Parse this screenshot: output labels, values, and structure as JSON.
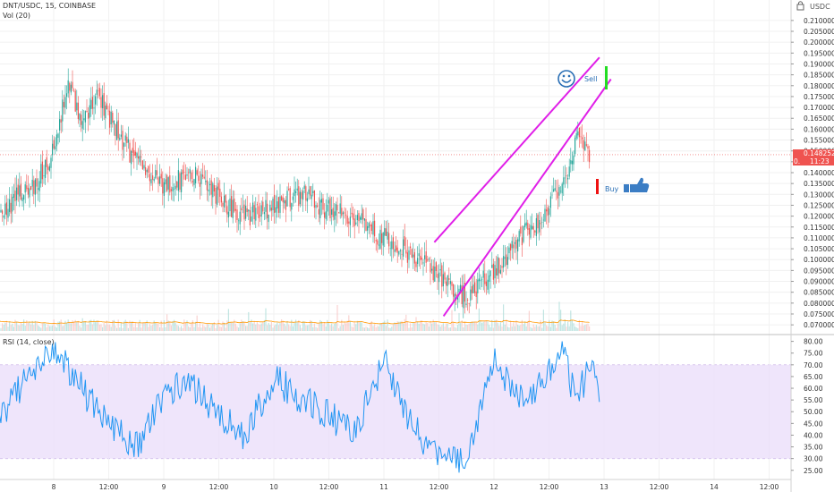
{
  "header": {
    "symbol_line": "DNT/USDC, 15, COINBASE",
    "volume_label": "Vol (20)",
    "rsi_label": "RSI (14, close)",
    "currency_label": "USDC",
    "currency_icon": "lock-icon"
  },
  "annotations": {
    "sell_label": "Sell",
    "buy_label": "Buy",
    "sell_icon": "smiley-face-icon",
    "buy_icon": "thumbs-up-icon",
    "sell_marker_color": "#22dd22",
    "buy_marker_color": "#ee1111"
  },
  "price_tags": {
    "last_price": "0.148252",
    "countdown": "11:23",
    "prefix": "0."
  },
  "colors": {
    "up_candle": "#26a69a",
    "down_candle": "#ef5350",
    "channel_line": "#e020e8",
    "rsi_line": "#2196f3",
    "rsi_band": "#eadcfa",
    "volume_ma": "#ff9800",
    "price_tag": "#ef5350"
  },
  "chart_data": [
    {
      "type": "candlestick",
      "name": "price",
      "y_axis_ticks": [
        "0.210000",
        "0.205000",
        "0.200000",
        "0.195000",
        "0.190000",
        "0.185000",
        "0.180000",
        "0.175000",
        "0.170000",
        "0.165000",
        "0.160000",
        "0.155000",
        "0.150000",
        "0.145000",
        "0.140000",
        "0.135000",
        "0.130000",
        "0.125000",
        "0.120000",
        "0.115000",
        "0.110000",
        "0.105000",
        "0.100000",
        "0.095000",
        "0.090000",
        "0.085000",
        "0.080000",
        "0.075000",
        "0.070000"
      ],
      "ylim": [
        0.068,
        0.212
      ],
      "x_axis_ticks": [
        "8",
        "12:00",
        "9",
        "12:00",
        "10",
        "12:00",
        "11",
        "12:00",
        "12",
        "12:00",
        "13",
        "12:00",
        "14",
        "12:00"
      ],
      "approx_close_path": [
        {
          "t": "7 00:00",
          "y": 0.115
        },
        {
          "t": "7 08:00",
          "y": 0.112
        },
        {
          "t": "7 14:00",
          "y": 0.125
        },
        {
          "t": "7 20:00",
          "y": 0.135
        },
        {
          "t": "8 00:00",
          "y": 0.15
        },
        {
          "t": "8 03:00",
          "y": 0.182
        },
        {
          "t": "8 06:00",
          "y": 0.165
        },
        {
          "t": "8 10:00",
          "y": 0.175
        },
        {
          "t": "8 14:00",
          "y": 0.158
        },
        {
          "t": "8 18:00",
          "y": 0.145
        },
        {
          "t": "9 00:00",
          "y": 0.133
        },
        {
          "t": "9 06:00",
          "y": 0.14
        },
        {
          "t": "9 12:00",
          "y": 0.128
        },
        {
          "t": "9 18:00",
          "y": 0.12
        },
        {
          "t": "10 00:00",
          "y": 0.125
        },
        {
          "t": "10 06:00",
          "y": 0.13
        },
        {
          "t": "10 12:00",
          "y": 0.123
        },
        {
          "t": "10 18:00",
          "y": 0.118
        },
        {
          "t": "11 00:00",
          "y": 0.11
        },
        {
          "t": "11 06:00",
          "y": 0.102
        },
        {
          "t": "11 12:00",
          "y": 0.093
        },
        {
          "t": "11 18:00",
          "y": 0.082
        },
        {
          "t": "12 00:00",
          "y": 0.095
        },
        {
          "t": "12 06:00",
          "y": 0.11
        },
        {
          "t": "12 12:00",
          "y": 0.125
        },
        {
          "t": "12 15:00",
          "y": 0.135
        },
        {
          "t": "12 18:00",
          "y": 0.155
        },
        {
          "t": "12 21:00",
          "y": 0.148
        }
      ],
      "channel_lines": [
        {
          "from": {
            "t": "11 11:00",
            "y": 0.108
          },
          "to": {
            "t": "12 23:00",
            "y": 0.193
          }
        },
        {
          "from": {
            "t": "11 13:00",
            "y": 0.074
          },
          "to": {
            "t": "13 01:30",
            "y": 0.183
          }
        }
      ],
      "last_price": 0.148252
    },
    {
      "type": "line",
      "name": "RSI (14, close)",
      "y_axis_ticks": [
        "80.00",
        "75.00",
        "70.00",
        "65.00",
        "60.00",
        "55.00",
        "50.00",
        "45.00",
        "40.00",
        "35.00",
        "30.00",
        "25.00"
      ],
      "ylim": [
        23,
        81
      ],
      "band": [
        30,
        70
      ],
      "x_axis_ticks": [
        "8",
        "12:00",
        "9",
        "12:00",
        "10",
        "12:00",
        "11",
        "12:00",
        "12",
        "12:00",
        "13",
        "12:00",
        "14",
        "12:00"
      ],
      "approx_path": [
        {
          "t": "7 00:00",
          "y": 60
        },
        {
          "t": "7 06:00",
          "y": 55
        },
        {
          "t": "7 12:00",
          "y": 45
        },
        {
          "t": "7 18:00",
          "y": 65
        },
        {
          "t": "8 00:00",
          "y": 77
        },
        {
          "t": "8 06:00",
          "y": 60
        },
        {
          "t": "8 12:00",
          "y": 45
        },
        {
          "t": "8 18:00",
          "y": 35
        },
        {
          "t": "9 00:00",
          "y": 58
        },
        {
          "t": "9 06:00",
          "y": 62
        },
        {
          "t": "9 12:00",
          "y": 48
        },
        {
          "t": "9 18:00",
          "y": 40
        },
        {
          "t": "10 00:00",
          "y": 65
        },
        {
          "t": "10 06:00",
          "y": 55
        },
        {
          "t": "10 12:00",
          "y": 48
        },
        {
          "t": "10 18:00",
          "y": 42
        },
        {
          "t": "11 00:00",
          "y": 72
        },
        {
          "t": "11 06:00",
          "y": 45
        },
        {
          "t": "11 12:00",
          "y": 30
        },
        {
          "t": "11 18:00",
          "y": 28
        },
        {
          "t": "12 00:00",
          "y": 72
        },
        {
          "t": "12 06:00",
          "y": 55
        },
        {
          "t": "12 12:00",
          "y": 66
        },
        {
          "t": "12 15:00",
          "y": 78
        },
        {
          "t": "12 18:00",
          "y": 52
        },
        {
          "t": "12 21:00",
          "y": 73
        },
        {
          "t": "12 23:00",
          "y": 57
        }
      ]
    }
  ]
}
